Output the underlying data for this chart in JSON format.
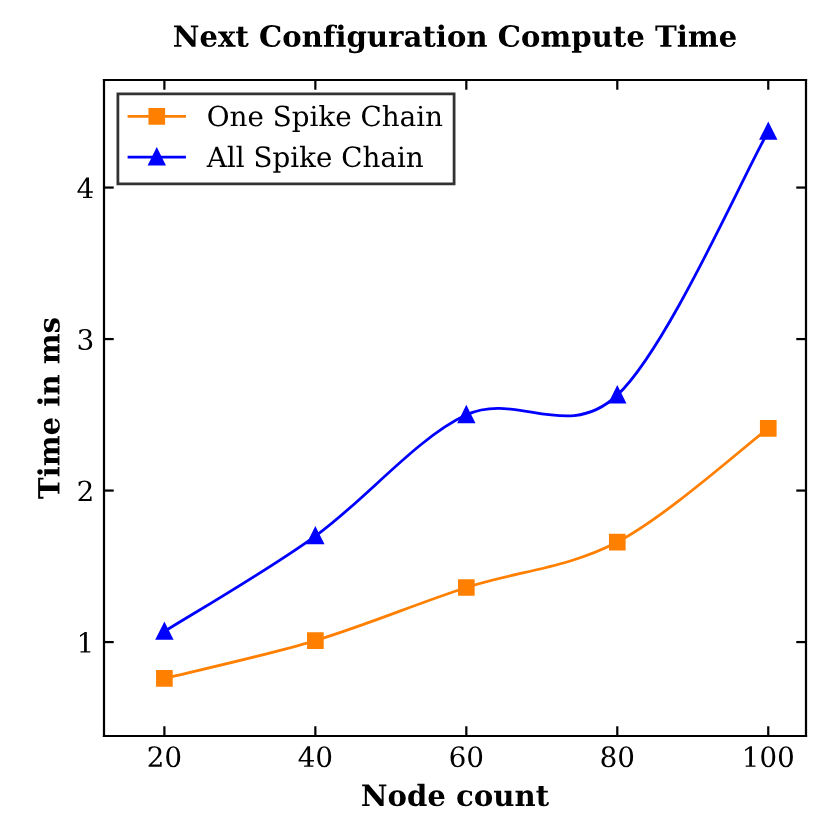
{
  "chart_data": {
    "type": "line",
    "title": "Next Configuration Compute Time",
    "xlabel": "Node count",
    "ylabel": "Time in ms",
    "x": [
      20,
      40,
      60,
      80,
      100
    ],
    "series": [
      {
        "name": "One Spike Chain",
        "color": "#ff8000",
        "marker": "square",
        "values": [
          0.76,
          1.01,
          1.36,
          1.66,
          2.41
        ]
      },
      {
        "name": "All Spike Chain",
        "color": "#0000ff",
        "marker": "triangle",
        "values": [
          1.07,
          1.7,
          2.5,
          2.63,
          4.37
        ]
      }
    ],
    "xlim": [
      12,
      105
    ],
    "xticks": [
      20,
      40,
      60,
      80,
      100
    ],
    "ylim": [
      0.38,
      4.71
    ],
    "yticks": [
      1,
      2,
      3,
      4
    ],
    "legend": "top left",
    "grid": false,
    "line_style": "solid"
  }
}
